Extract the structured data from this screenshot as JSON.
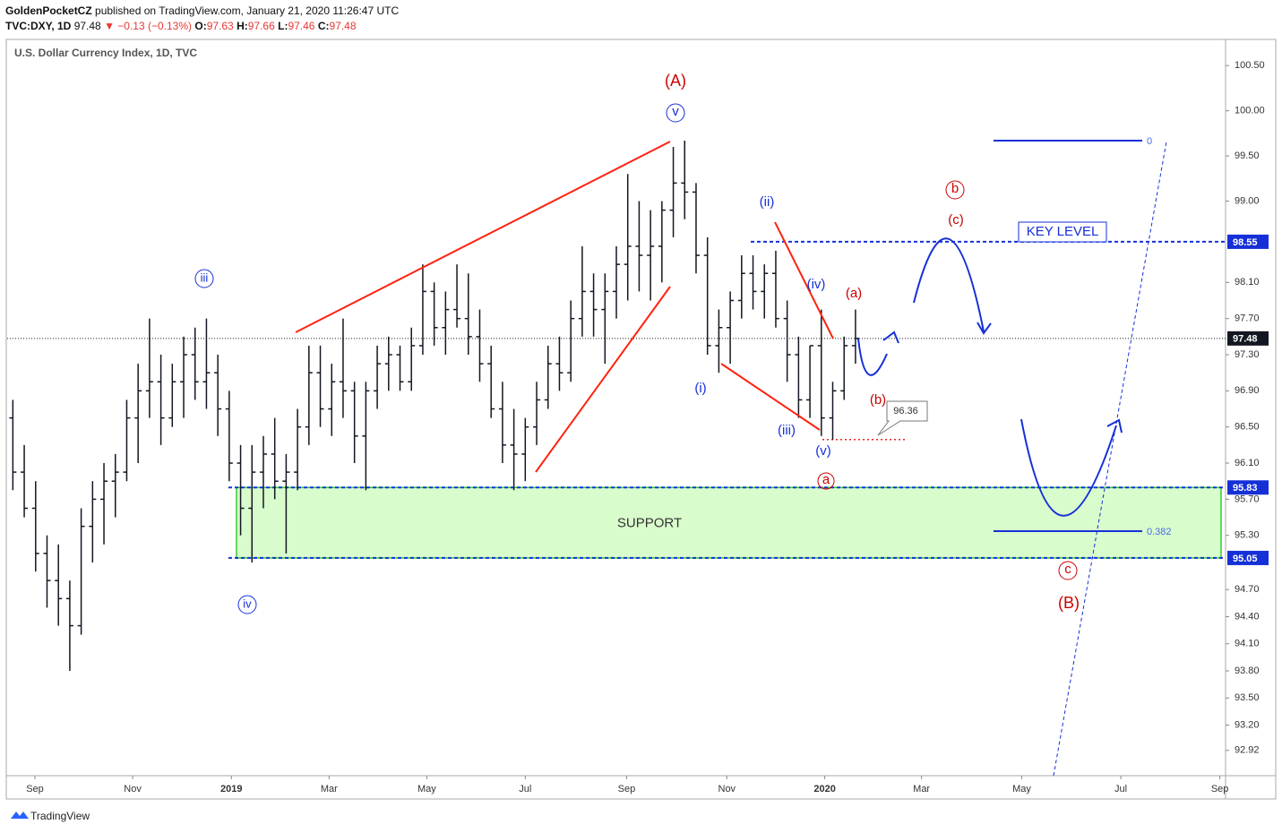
{
  "header": {
    "publisher": "GoldenPocketCZ",
    "published": "published on TradingView.com, January 21, 2020 11:26:47 UTC",
    "symbol": "TVC:DXY, 1D",
    "last": "97.48",
    "change": "▼ −0.13 (−0.13%)",
    "ohlc": [
      [
        "O:",
        "97.63"
      ],
      [
        "H:",
        "97.66"
      ],
      [
        "L:",
        "97.46"
      ],
      [
        "C:",
        "97.48"
      ]
    ]
  },
  "chart_data": {
    "type": "ohlc",
    "title": "U.S. Dollar Currency Index, 1D, TVC",
    "ohlc": [
      [
        96.6,
        96.8,
        95.8,
        96.0
      ],
      [
        96.0,
        96.3,
        95.5,
        95.6
      ],
      [
        95.6,
        95.9,
        94.9,
        95.1
      ],
      [
        95.1,
        95.3,
        94.5,
        94.8
      ],
      [
        94.8,
        95.2,
        94.3,
        94.6
      ],
      [
        94.6,
        94.8,
        93.8,
        94.3
      ],
      [
        94.3,
        95.6,
        94.2,
        95.4
      ],
      [
        95.4,
        95.9,
        95.0,
        95.7
      ],
      [
        95.7,
        96.1,
        95.2,
        95.9
      ],
      [
        95.9,
        96.2,
        95.5,
        96.0
      ],
      [
        96.0,
        96.8,
        95.9,
        96.6
      ],
      [
        96.6,
        97.2,
        96.1,
        96.9
      ],
      [
        96.9,
        97.7,
        96.6,
        97.0
      ],
      [
        97.0,
        97.3,
        96.3,
        96.6
      ],
      [
        96.6,
        97.2,
        96.5,
        97.0
      ],
      [
        97.0,
        97.5,
        96.6,
        97.3
      ],
      [
        97.3,
        97.6,
        96.8,
        97.0
      ],
      [
        97.0,
        97.7,
        96.7,
        97.1
      ],
      [
        97.1,
        97.3,
        96.4,
        96.7
      ],
      [
        96.7,
        96.9,
        95.9,
        96.1
      ],
      [
        96.1,
        96.3,
        95.3,
        95.6
      ],
      [
        95.6,
        96.3,
        95.0,
        96.0
      ],
      [
        96.0,
        96.4,
        95.6,
        96.2
      ],
      [
        96.2,
        96.6,
        95.7,
        95.9
      ],
      [
        95.9,
        96.2,
        95.1,
        96.0
      ],
      [
        96.0,
        96.7,
        95.8,
        96.5
      ],
      [
        96.5,
        97.4,
        96.3,
        97.1
      ],
      [
        97.1,
        97.4,
        96.5,
        96.7
      ],
      [
        96.7,
        97.2,
        96.4,
        97.0
      ],
      [
        97.0,
        97.7,
        96.6,
        96.9
      ],
      [
        96.9,
        97.0,
        96.1,
        96.4
      ],
      [
        96.4,
        97.0,
        95.8,
        96.9
      ],
      [
        96.9,
        97.4,
        96.7,
        97.2
      ],
      [
        97.2,
        97.5,
        96.9,
        97.3
      ],
      [
        97.3,
        97.4,
        96.9,
        97.0
      ],
      [
        97.0,
        97.6,
        96.9,
        97.4
      ],
      [
        97.4,
        98.3,
        97.3,
        98.0
      ],
      [
        98.0,
        98.1,
        97.4,
        97.6
      ],
      [
        97.6,
        98.0,
        97.3,
        97.8
      ],
      [
        97.8,
        98.3,
        97.6,
        97.7
      ],
      [
        97.7,
        98.2,
        97.3,
        97.5
      ],
      [
        97.5,
        97.8,
        97.0,
        97.2
      ],
      [
        97.2,
        97.4,
        96.6,
        96.7
      ],
      [
        96.7,
        97.0,
        96.1,
        96.3
      ],
      [
        96.3,
        96.7,
        95.8,
        96.2
      ],
      [
        96.2,
        96.6,
        95.9,
        96.5
      ],
      [
        96.5,
        97.0,
        96.3,
        96.8
      ],
      [
        96.8,
        97.4,
        96.7,
        97.2
      ],
      [
        97.2,
        97.5,
        96.9,
        97.1
      ],
      [
        97.1,
        97.9,
        97.0,
        97.7
      ],
      [
        97.7,
        98.5,
        97.5,
        98.0
      ],
      [
        98.0,
        98.2,
        97.5,
        97.8
      ],
      [
        97.8,
        98.2,
        97.2,
        98.0
      ],
      [
        98.0,
        98.5,
        97.7,
        98.3
      ],
      [
        98.3,
        99.3,
        97.9,
        98.5
      ],
      [
        98.5,
        99.0,
        98.0,
        98.4
      ],
      [
        98.4,
        98.9,
        97.9,
        98.5
      ],
      [
        98.5,
        99.0,
        98.1,
        98.9
      ],
      [
        98.9,
        99.6,
        98.6,
        99.2
      ],
      [
        99.2,
        99.67,
        98.8,
        99.1
      ],
      [
        99.1,
        99.2,
        98.2,
        98.4
      ],
      [
        98.4,
        98.6,
        97.3,
        97.4
      ],
      [
        97.4,
        97.8,
        97.1,
        97.6
      ],
      [
        97.6,
        98.0,
        97.2,
        97.9
      ],
      [
        97.9,
        98.4,
        97.7,
        98.2
      ],
      [
        98.2,
        98.4,
        97.8,
        98.0
      ],
      [
        98.0,
        98.3,
        97.7,
        98.2
      ],
      [
        98.2,
        98.45,
        97.6,
        97.7
      ],
      [
        97.7,
        97.9,
        97.0,
        97.3
      ],
      [
        97.3,
        97.5,
        96.6,
        96.8
      ],
      [
        96.8,
        97.4,
        96.6,
        97.4
      ],
      [
        97.4,
        97.8,
        96.4,
        96.6
      ],
      [
        96.6,
        97.0,
        96.36,
        96.9
      ],
      [
        96.9,
        97.5,
        96.8,
        97.4
      ],
      [
        97.4,
        97.8,
        97.2,
        97.48
      ]
    ],
    "color": "#131722",
    "xlim": [
      0,
      107
    ],
    "xticks": [
      {
        "value": 2.44,
        "label": "Sep"
      },
      {
        "value": 11.02,
        "label": "Nov"
      },
      {
        "value": 19.69,
        "label": "2019"
      },
      {
        "value": 28.27,
        "label": "Mar"
      },
      {
        "value": 36.85,
        "label": "May"
      },
      {
        "value": 45.5,
        "label": "Jul"
      },
      {
        "value": 54.4,
        "label": "Sep"
      },
      {
        "value": 63.2,
        "label": "Nov"
      },
      {
        "value": 71.8,
        "label": "2020"
      },
      {
        "value": 80.3,
        "label": "Mar"
      },
      {
        "value": 89.1,
        "label": "May"
      },
      {
        "value": 97.8,
        "label": "Jul"
      },
      {
        "value": 106.5,
        "label": "Sep"
      }
    ],
    "ylim": [
      92.64,
      100.79
    ],
    "yticks": [
      {
        "value": 100.5,
        "label": "100.50"
      },
      {
        "value": 100,
        "label": "100.00"
      },
      {
        "value": 99.5,
        "label": "99.50"
      },
      {
        "value": 99,
        "label": "99.00"
      },
      {
        "value": 98.1,
        "label": "98.10"
      },
      {
        "value": 97.7,
        "label": "97.70"
      },
      {
        "value": 97.3,
        "label": "97.30"
      },
      {
        "value": 96.9,
        "label": "96.90"
      },
      {
        "value": 96.5,
        "label": "96.50"
      },
      {
        "value": 96.1,
        "label": "96.10"
      },
      {
        "value": 95.7,
        "label": "95.70"
      },
      {
        "value": 95.3,
        "label": "95.30"
      },
      {
        "value": 94.7,
        "label": "94.70"
      },
      {
        "value": 94.4,
        "label": "94.40"
      },
      {
        "value": 94.1,
        "label": "94.10"
      },
      {
        "value": 93.8,
        "label": "93.80"
      },
      {
        "value": 93.5,
        "label": "93.50"
      },
      {
        "value": 93.2,
        "label": "93.20"
      },
      92.92
    ],
    "price_lines": {
      "last": 97.48,
      "key_level": 98.55,
      "support_top": 95.83,
      "support_bottom": 95.05,
      "low_marker": 96.36
    },
    "annotations": {
      "key_level": "KEY LEVEL",
      "support": "SUPPORT",
      "fib_0": "0",
      "fib_382": "0.382",
      "waves": [
        "(A)",
        "v",
        "iii",
        "iv",
        "(ii)",
        "(i)",
        "(iv)",
        "(iii)",
        "(v)",
        "a",
        "(a)",
        "(b)",
        "b",
        "(c)",
        "c",
        "(B)"
      ]
    }
  },
  "footer": "TradingView"
}
